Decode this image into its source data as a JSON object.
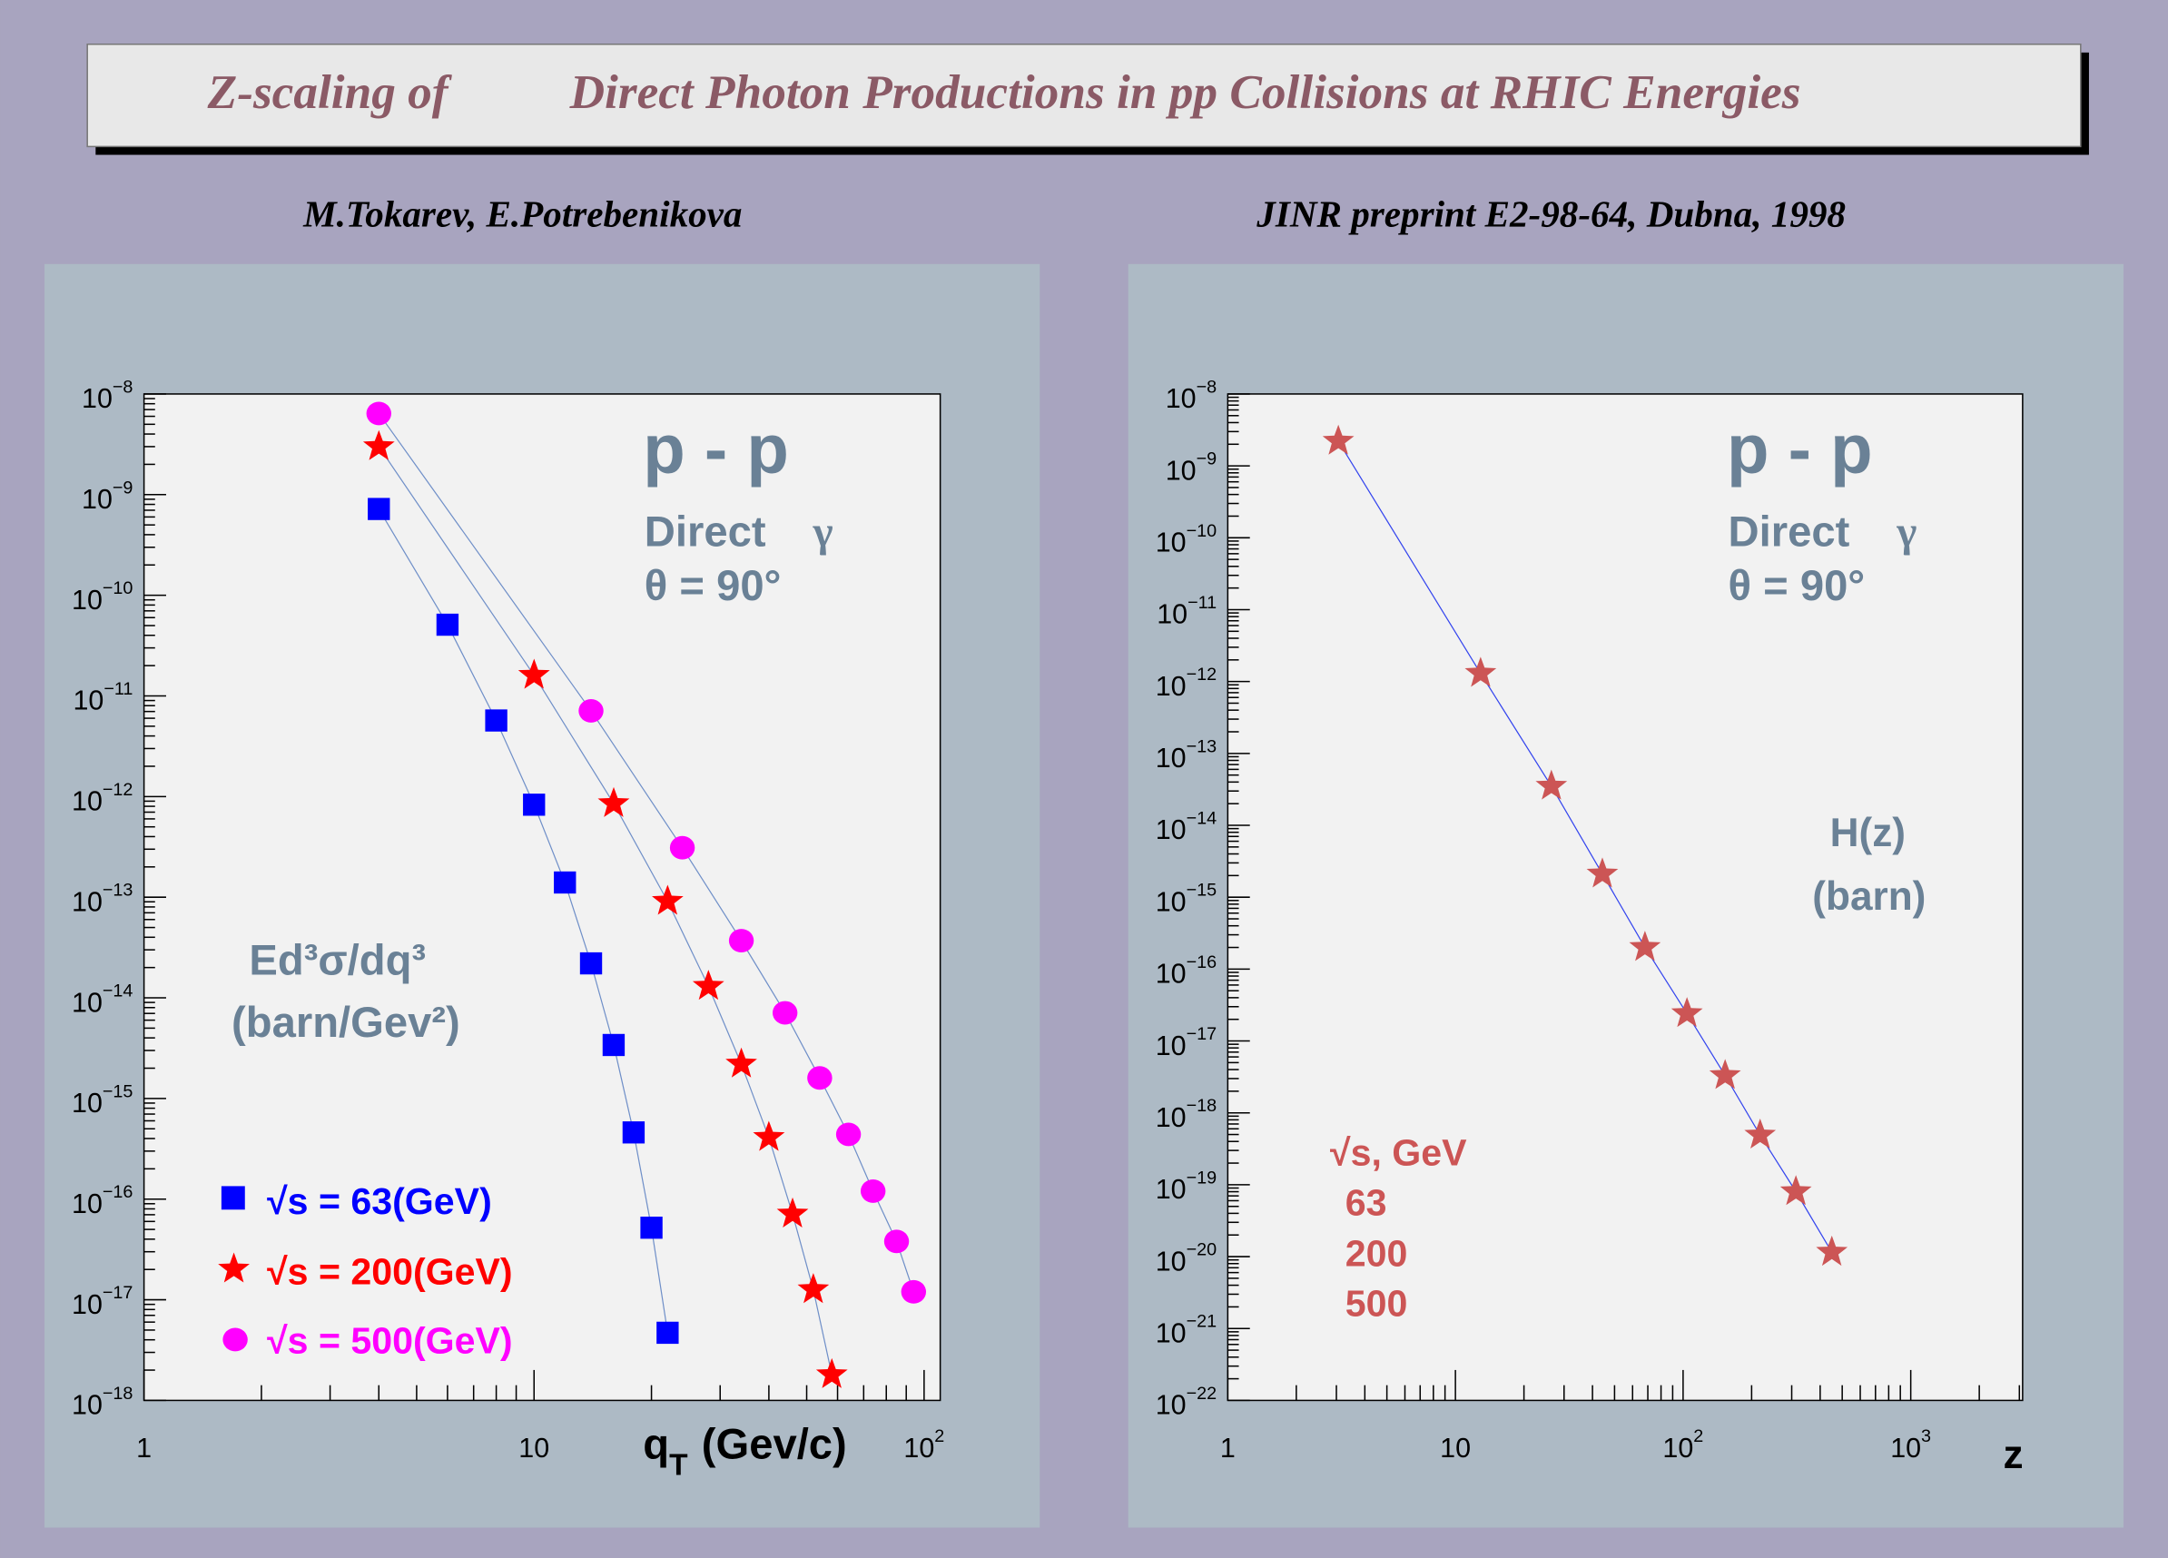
{
  "header": {
    "title_part1": "Z-scaling of",
    "title_part2": "Direct Photon Productions in pp Collisions at RHIC Energies",
    "authors": "M.Tokarev, E.Potrebenikova",
    "reference": "JINR preprint E2-98-64, Dubna, 1998"
  },
  "colors": {
    "background": "#a8a4bf",
    "panel": "#adbac5",
    "frame": "#f2f2f2",
    "title": "#8b5a66",
    "annotation": "#6a8196",
    "s63": "#0000ff",
    "s200": "#ff0000",
    "s500": "#ff00ff",
    "zpoints": "#cc5555"
  },
  "chart_data": [
    {
      "type": "scatter",
      "x_scale": "log",
      "y_scale": "log",
      "xlim": [
        1,
        110
      ],
      "ylim": [
        1e-18,
        1e-08
      ],
      "xlabel": "q",
      "xlabel_sub": "T",
      "xlabel_unit": "(Gev/c)",
      "xticks": [
        {
          "base": "1",
          "exp": ""
        },
        {
          "base": "10",
          "exp": ""
        },
        {
          "base": "10",
          "exp": "2"
        }
      ],
      "xtick_values": [
        1,
        10,
        100
      ],
      "ytick_values": [
        1e-08,
        1e-09,
        1e-10,
        1e-11,
        1e-12,
        1e-13,
        1e-14,
        1e-15,
        1e-16,
        1e-17,
        1e-18
      ],
      "yticks": [
        {
          "base": "10",
          "exp": "−8"
        },
        {
          "base": "10",
          "exp": "−9"
        },
        {
          "base": "10",
          "exp": "−10"
        },
        {
          "base": "10",
          "exp": "−11"
        },
        {
          "base": "10",
          "exp": "−12"
        },
        {
          "base": "10",
          "exp": "−13"
        },
        {
          "base": "10",
          "exp": "−14"
        },
        {
          "base": "10",
          "exp": "−15"
        },
        {
          "base": "10",
          "exp": "−16"
        },
        {
          "base": "10",
          "exp": "−17"
        },
        {
          "base": "10",
          "exp": "−18"
        }
      ],
      "annotations": {
        "system": "p - p",
        "process": "Direct",
        "gamma": "γ",
        "angle": "θ = 90°",
        "ylabel_line1": "Ed³σ/dq³",
        "ylabel_line2": "(barn/Gev²)"
      },
      "legend_placement": "bottom-left",
      "series": [
        {
          "name": "√s = 63(GeV)",
          "marker": "square",
          "color": "#0000ff",
          "x": [
            4,
            6,
            8,
            10,
            12,
            14,
            16,
            18,
            20,
            22
          ],
          "y": [
            7.2e-10,
            5.1e-11,
            5.7e-12,
            8.3e-13,
            1.4e-13,
            2.2e-14,
            3.4e-15,
            4.6e-16,
            5.2e-17,
            4.7e-18
          ]
        },
        {
          "name": "√s = 200(GeV)",
          "marker": "star",
          "color": "#ff0000",
          "x": [
            4,
            10,
            16,
            22,
            28,
            34,
            40,
            46,
            52,
            58
          ],
          "y": [
            3e-09,
            1.6e-11,
            8.5e-13,
            9.1e-14,
            1.3e-14,
            2.2e-15,
            4.1e-16,
            7.1e-17,
            1.26e-17,
            1.8e-18
          ]
        },
        {
          "name": "√s = 500(GeV)",
          "marker": "circle",
          "color": "#ff00ff",
          "x": [
            4,
            14,
            24,
            34,
            44,
            54,
            64,
            74,
            85,
            94
          ],
          "y": [
            6.4e-09,
            7.1e-12,
            3.1e-13,
            3.7e-14,
            7.1e-15,
            1.6e-15,
            4.4e-16,
            1.2e-16,
            3.8e-17,
            1.2e-17
          ]
        }
      ]
    },
    {
      "type": "scatter",
      "x_scale": "log",
      "y_scale": "log",
      "xlim": [
        1,
        3100
      ],
      "ylim": [
        1e-22,
        1e-08
      ],
      "xlabel": "z",
      "xticks": [
        {
          "base": "1",
          "exp": ""
        },
        {
          "base": "10",
          "exp": ""
        },
        {
          "base": "10",
          "exp": "2"
        },
        {
          "base": "10",
          "exp": "3"
        }
      ],
      "xtick_values": [
        1,
        10,
        100,
        1000
      ],
      "ytick_values": [
        1e-08,
        1e-09,
        1e-10,
        1e-11,
        1e-12,
        1e-13,
        1e-14,
        1e-15,
        1e-16,
        1e-17,
        1e-18,
        1e-19,
        1e-20,
        1e-21,
        1e-22
      ],
      "yticks": [
        {
          "base": "10",
          "exp": "−8"
        },
        {
          "base": "10",
          "exp": "−9"
        },
        {
          "base": "10",
          "exp": "−10"
        },
        {
          "base": "10",
          "exp": "−11"
        },
        {
          "base": "10",
          "exp": "−12"
        },
        {
          "base": "10",
          "exp": "−13"
        },
        {
          "base": "10",
          "exp": "−14"
        },
        {
          "base": "10",
          "exp": "−15"
        },
        {
          "base": "10",
          "exp": "−16"
        },
        {
          "base": "10",
          "exp": "−17"
        },
        {
          "base": "10",
          "exp": "−18"
        },
        {
          "base": "10",
          "exp": "−19"
        },
        {
          "base": "10",
          "exp": "−20"
        },
        {
          "base": "10",
          "exp": "−21"
        },
        {
          "base": "10",
          "exp": "−22"
        }
      ],
      "annotations": {
        "system": "p - p",
        "process": "Direct",
        "gamma": "γ",
        "angle": "θ = 90°",
        "ylabel_line1": "H(z)",
        "ylabel_line2": "(barn)"
      },
      "legend": {
        "title": "√s, GeV",
        "entries": [
          "63",
          "200",
          "500"
        ]
      },
      "legend_placement": "bottom-left",
      "series": [
        {
          "marker": "star",
          "color": "#cc5555",
          "x": [
            3.06,
            12.9,
            26.4,
            44.2,
            68,
            104,
            153,
            218,
            313,
            450
          ],
          "y": [
            2.2e-09,
            1.3e-12,
            3.5e-14,
            2.1e-15,
            2e-16,
            2.4e-17,
            3.3e-18,
            4.9e-19,
            8e-20,
            1.15e-20
          ]
        }
      ]
    }
  ]
}
